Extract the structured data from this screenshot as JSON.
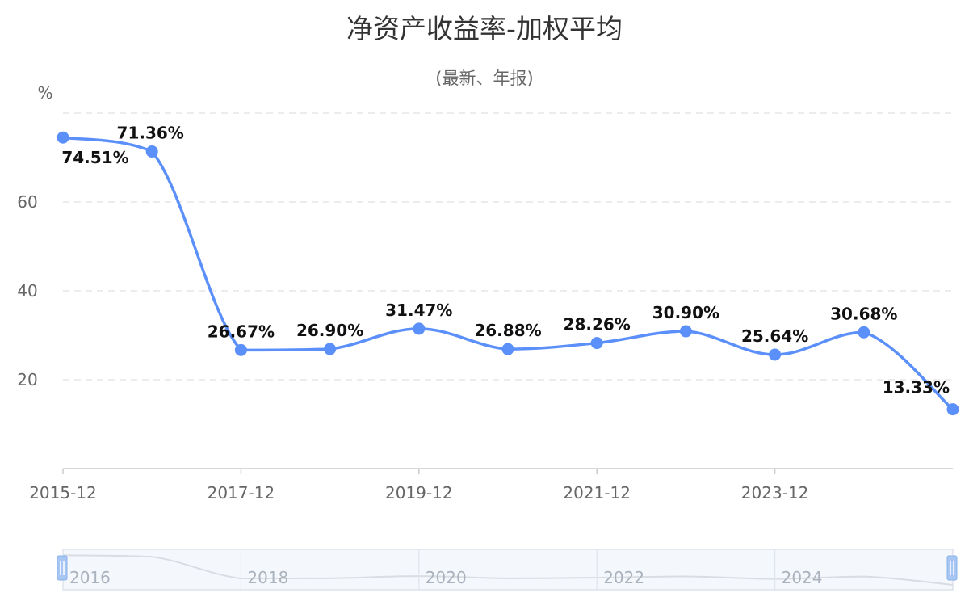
{
  "chart_data": {
    "type": "line",
    "title": "净资产收益率-加权平均",
    "subtitle": "(最新、年报)",
    "ylabel": "%",
    "ylim": [
      0,
      80
    ],
    "yticks": [
      20,
      40,
      60
    ],
    "grid": true,
    "x": [
      "2015-12",
      "2016-12",
      "2017-12",
      "2018-12",
      "2019-12",
      "2020-12",
      "2021-12",
      "2022-12",
      "2023-12",
      "2024-12",
      "2025-06"
    ],
    "x_tick_labels": [
      "2015-12",
      "2017-12",
      "2019-12",
      "2021-12",
      "2023-12"
    ],
    "series": [
      {
        "values": [
          74.51,
          71.36,
          26.67,
          26.9,
          31.47,
          26.88,
          28.26,
          30.9,
          25.64,
          30.68,
          13.33
        ],
        "labels": [
          "74.51%",
          "71.36%",
          "26.67%",
          "26.90%",
          "31.47%",
          "26.88%",
          "28.26%",
          "30.90%",
          "25.64%",
          "30.68%",
          "13.33%"
        ],
        "color": "#5b8ff9"
      }
    ],
    "slider_labels": [
      "2016",
      "2018",
      "2020",
      "2022",
      "2024"
    ]
  }
}
